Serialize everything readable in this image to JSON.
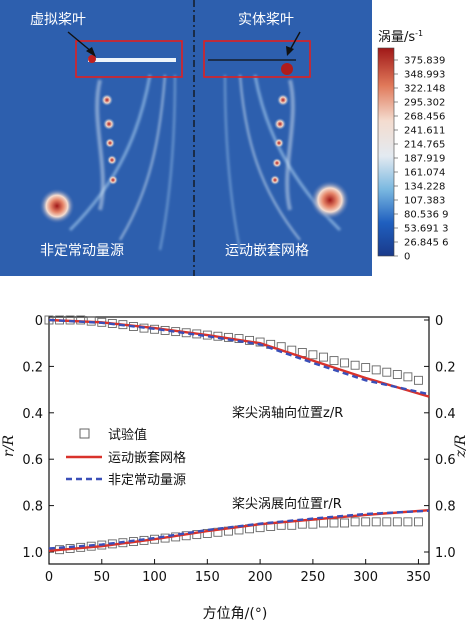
{
  "top_panel": {
    "left_label": "虚拟桨叶",
    "right_label": "实体桨叶",
    "left_caption": "非定常动量源",
    "right_caption": "运动嵌套网格",
    "colorbar": {
      "title": "涡量/s",
      "title_sup": "-1",
      "ticks": [
        "375.839",
        "348.993",
        "322.148",
        "295.302",
        "268.456",
        "241.611",
        "214.765",
        "187.919",
        "161.074",
        "134.228",
        "107.383",
        "80.536 9",
        "53.691 3",
        "26.845 6",
        "0"
      ],
      "colors": [
        "#1a3a8a",
        "#1f5fbf",
        "#3a8fd6",
        "#7ab8e0",
        "#b6d5ea",
        "#e3eaf1",
        "#f4dccf",
        "#eeb08f",
        "#e0795a",
        "#c83a30",
        "#a01818"
      ]
    }
  },
  "chart_data": {
    "type": "line",
    "xlabel": "方位角/(°)",
    "ylabel_left": "r/R",
    "ylabel_right": "z/R",
    "xlim": [
      0,
      360
    ],
    "ylim": [
      0,
      1.0
    ],
    "y_inverted": true,
    "xticks": [
      "0",
      "50",
      "100",
      "150",
      "200",
      "250",
      "300",
      "350"
    ],
    "yticks": [
      "0",
      "0.2",
      "0.4",
      "0.6",
      "0.8",
      "1.0"
    ],
    "legend": [
      "试验值",
      "运动嵌套网格",
      "非定常动量源"
    ],
    "annotations": [
      "桨尖涡轴向位置z/R",
      "桨尖涡展向位置r/R"
    ],
    "series": [
      {
        "name": "试验值",
        "group": "z/R",
        "style": "markers",
        "color": "#666666",
        "x": [
          0,
          10,
          20,
          30,
          40,
          50,
          60,
          70,
          80,
          90,
          100,
          110,
          120,
          130,
          140,
          150,
          160,
          170,
          180,
          190,
          200,
          210,
          220,
          230,
          240,
          250,
          260,
          270,
          280,
          290,
          300,
          310,
          320,
          330,
          340,
          350
        ],
        "y": [
          0.0,
          0.0,
          0.0,
          0.0,
          0.005,
          0.01,
          0.015,
          0.02,
          0.028,
          0.035,
          0.04,
          0.045,
          0.05,
          0.055,
          0.06,
          0.065,
          0.07,
          0.075,
          0.08,
          0.088,
          0.095,
          0.105,
          0.115,
          0.13,
          0.14,
          0.15,
          0.16,
          0.175,
          0.185,
          0.195,
          0.205,
          0.215,
          0.225,
          0.235,
          0.245,
          0.26
        ]
      },
      {
        "name": "运动嵌套网格",
        "group": "z/R",
        "style": "solid",
        "color": "#d9322b",
        "x": [
          0,
          50,
          100,
          150,
          200,
          250,
          300,
          360
        ],
        "y": [
          0.0,
          0.01,
          0.035,
          0.065,
          0.1,
          0.175,
          0.25,
          0.33
        ]
      },
      {
        "name": "非定常动量源",
        "group": "z/R",
        "style": "dashed",
        "color": "#3a4fb8",
        "x": [
          0,
          50,
          100,
          150,
          200,
          250,
          300,
          360
        ],
        "y": [
          0.0,
          0.012,
          0.038,
          0.07,
          0.105,
          0.185,
          0.26,
          0.32
        ]
      },
      {
        "name": "试验值",
        "group": "r/R",
        "style": "markers",
        "color": "#666666",
        "x": [
          10,
          20,
          30,
          40,
          50,
          60,
          70,
          80,
          90,
          100,
          110,
          120,
          130,
          140,
          150,
          160,
          170,
          180,
          190,
          200,
          210,
          220,
          230,
          240,
          250,
          260,
          270,
          280,
          290,
          300,
          310,
          320,
          330,
          340,
          350
        ],
        "y": [
          0.99,
          0.985,
          0.98,
          0.975,
          0.97,
          0.965,
          0.96,
          0.955,
          0.95,
          0.945,
          0.94,
          0.935,
          0.93,
          0.925,
          0.92,
          0.915,
          0.91,
          0.905,
          0.9,
          0.895,
          0.89,
          0.885,
          0.885,
          0.88,
          0.88,
          0.875,
          0.875,
          0.875,
          0.87,
          0.87,
          0.87,
          0.87,
          0.87,
          0.87,
          0.87
        ]
      },
      {
        "name": "运动嵌套网格",
        "group": "r/R",
        "style": "solid",
        "color": "#d9322b",
        "x": [
          0,
          50,
          100,
          150,
          200,
          250,
          300,
          360
        ],
        "y": [
          0.995,
          0.975,
          0.945,
          0.91,
          0.88,
          0.86,
          0.84,
          0.82
        ]
      },
      {
        "name": "非定常动量源",
        "group": "r/R",
        "style": "dashed",
        "color": "#3a4fb8",
        "x": [
          0,
          50,
          100,
          150,
          200,
          250,
          300,
          360
        ],
        "y": [
          0.985,
          0.968,
          0.94,
          0.905,
          0.878,
          0.856,
          0.836,
          0.822
        ]
      }
    ]
  }
}
